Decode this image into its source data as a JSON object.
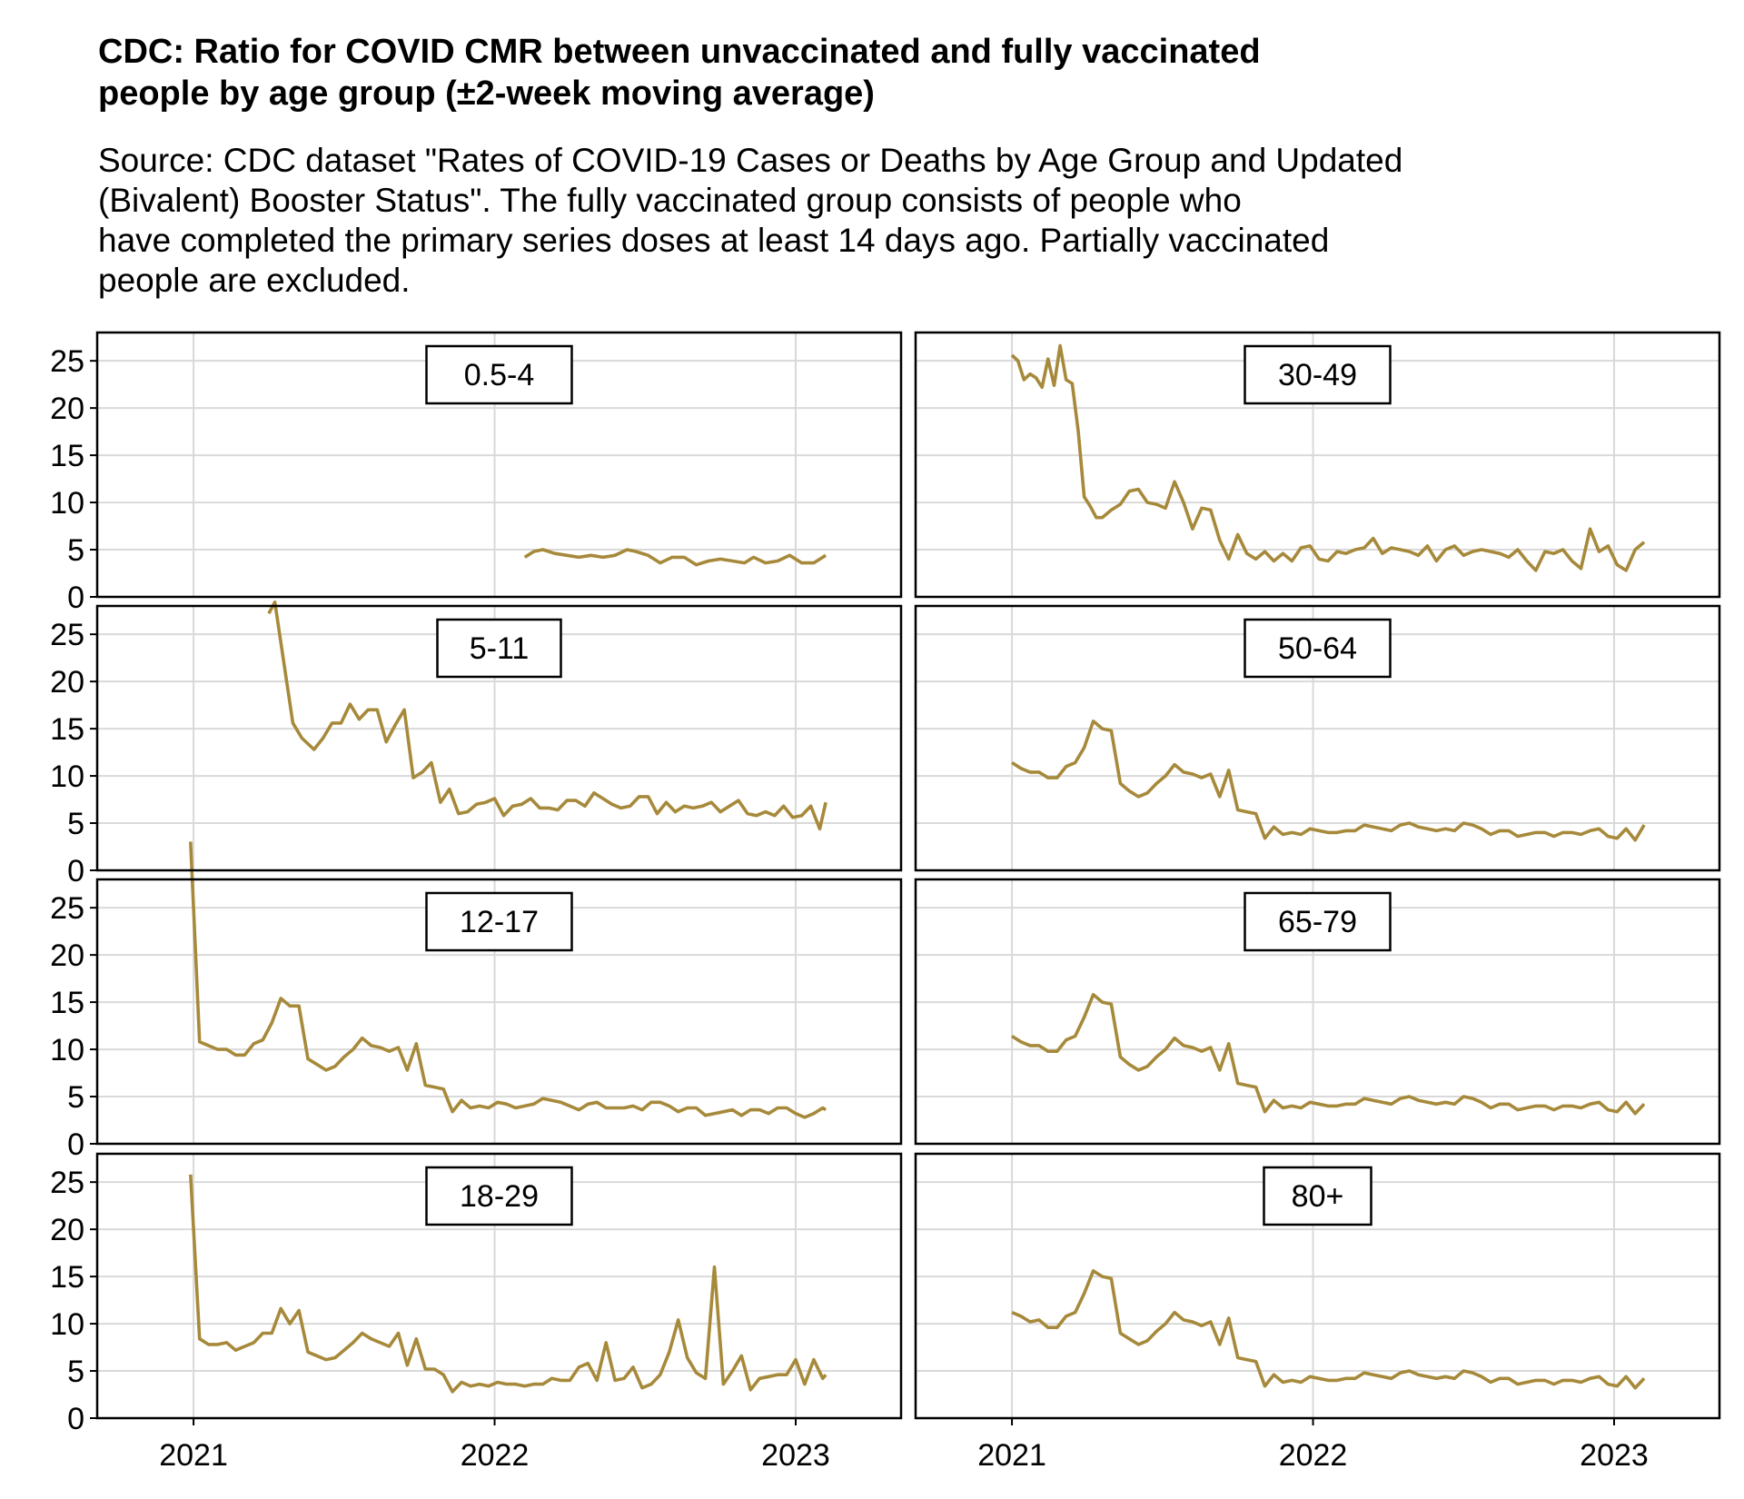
{
  "title_lines": [
    "CDC: Ratio for COVID CMR between unvaccinated and fully vaccinated",
    "people by age group (±2-week moving average)"
  ],
  "subtitle_lines": [
    "Source: CDC dataset \"Rates of COVID-19 Cases or Deaths by Age Group and Updated",
    "(Bivalent) Booster Status\". The fully vaccinated group consists of people who",
    "have completed the primary series doses at least 14 days ago. Partially vaccinated",
    "people are excluded."
  ],
  "chart_data": {
    "type": "line",
    "facet_layout": "4 rows x 2 columns",
    "line_color": "#a6893a",
    "grid": true,
    "x_ticks": [
      "2021",
      "2022",
      "2023"
    ],
    "y_ticks": [
      "0",
      "5",
      "10",
      "15",
      "20",
      "25"
    ],
    "ylim": [
      0,
      28
    ],
    "x_range_years": [
      2020.68,
      2023.35
    ],
    "panels": [
      {
        "label": "0.5-4",
        "x": [
          2022.1,
          2022.13,
          2022.16,
          2022.2,
          2022.24,
          2022.28,
          2022.32,
          2022.36,
          2022.4,
          2022.44,
          2022.47,
          2022.51,
          2022.55,
          2022.59,
          2022.63,
          2022.67,
          2022.71,
          2022.75,
          2022.79,
          2022.83,
          2022.86,
          2022.9,
          2022.94,
          2022.98,
          2023.02,
          2023.06,
          2023.1
        ],
        "y": [
          4.2,
          4.8,
          5.0,
          4.6,
          4.4,
          4.2,
          4.4,
          4.2,
          4.4,
          5.0,
          4.8,
          4.4,
          3.6,
          4.2,
          4.2,
          3.4,
          3.8,
          4.0,
          3.8,
          3.6,
          4.2,
          3.6,
          3.8,
          4.4,
          3.6,
          3.6,
          4.4
        ]
      },
      {
        "label": "30-49",
        "x": [
          2021.0,
          2021.02,
          2021.04,
          2021.06,
          2021.08,
          2021.1,
          2021.12,
          2021.14,
          2021.16,
          2021.18,
          2021.2,
          2021.22,
          2021.24,
          2021.26,
          2021.28,
          2021.3,
          2021.33,
          2021.36,
          2021.39,
          2021.42,
          2021.45,
          2021.48,
          2021.51,
          2021.54,
          2021.57,
          2021.6,
          2021.63,
          2021.66,
          2021.69,
          2021.72,
          2021.75,
          2021.78,
          2021.81,
          2021.84,
          2021.87,
          2021.9,
          2021.93,
          2021.96,
          2021.99,
          2022.02,
          2022.05,
          2022.08,
          2022.11,
          2022.14,
          2022.17,
          2022.2,
          2022.23,
          2022.26,
          2022.29,
          2022.32,
          2022.35,
          2022.38,
          2022.41,
          2022.44,
          2022.47,
          2022.5,
          2022.53,
          2022.56,
          2022.59,
          2022.62,
          2022.65,
          2022.68,
          2022.71,
          2022.74,
          2022.77,
          2022.8,
          2022.83,
          2022.86,
          2022.89,
          2022.92,
          2022.95,
          2022.98,
          2023.01,
          2023.04,
          2023.07,
          2023.1
        ],
        "y": [
          25.6,
          25.0,
          23.0,
          23.6,
          23.2,
          22.2,
          25.2,
          22.4,
          26.6,
          23.0,
          22.6,
          17.6,
          10.6,
          9.6,
          8.4,
          8.4,
          9.2,
          9.8,
          11.2,
          11.4,
          10.0,
          9.8,
          9.4,
          12.2,
          10.0,
          7.2,
          9.4,
          9.2,
          6.0,
          4.0,
          6.6,
          4.6,
          4.0,
          4.8,
          3.8,
          4.6,
          3.8,
          5.2,
          5.4,
          4.0,
          3.8,
          4.8,
          4.6,
          5.0,
          5.2,
          6.2,
          4.6,
          5.2,
          5.0,
          4.8,
          4.4,
          5.4,
          3.8,
          5.0,
          5.4,
          4.4,
          4.8,
          5.0,
          4.8,
          4.6,
          4.2,
          5.0,
          3.8,
          2.8,
          4.8,
          4.6,
          5.0,
          3.8,
          3.0,
          7.2,
          4.8,
          5.4,
          3.4,
          2.8,
          5.0,
          5.8
        ]
      },
      {
        "label": "5-11",
        "x": [
          2021.25,
          2021.27,
          2021.3,
          2021.33,
          2021.36,
          2021.4,
          2021.43,
          2021.46,
          2021.49,
          2021.52,
          2021.55,
          2021.58,
          2021.61,
          2021.64,
          2021.67,
          2021.7,
          2021.73,
          2021.76,
          2021.79,
          2021.82,
          2021.85,
          2021.88,
          2021.91,
          2021.94,
          2021.97,
          2022.0,
          2022.03,
          2022.06,
          2022.09,
          2022.12,
          2022.15,
          2022.18,
          2022.21,
          2022.24,
          2022.27,
          2022.3,
          2022.33,
          2022.36,
          2022.39,
          2022.42,
          2022.45,
          2022.48,
          2022.51,
          2022.54,
          2022.57,
          2022.6,
          2022.63,
          2022.66,
          2022.69,
          2022.72,
          2022.75,
          2022.78,
          2022.81,
          2022.84,
          2022.87,
          2022.9,
          2022.93,
          2022.96,
          2022.99,
          2023.02,
          2023.05,
          2023.08,
          2023.1
        ],
        "y": [
          27.2,
          28.4,
          22.0,
          15.6,
          14.0,
          12.8,
          14.0,
          15.6,
          15.6,
          17.6,
          16.0,
          17.0,
          17.0,
          13.6,
          15.4,
          17.0,
          9.8,
          10.4,
          11.4,
          7.2,
          8.6,
          6.0,
          6.2,
          7.0,
          7.2,
          7.6,
          5.8,
          6.8,
          7.0,
          7.6,
          6.6,
          6.6,
          6.4,
          7.4,
          7.4,
          6.8,
          8.2,
          7.6,
          7.0,
          6.6,
          6.8,
          7.8,
          7.8,
          6.0,
          7.2,
          6.2,
          6.8,
          6.6,
          6.8,
          7.2,
          6.2,
          6.8,
          7.4,
          6.0,
          5.8,
          6.2,
          5.8,
          6.8,
          5.6,
          5.8,
          6.8,
          4.4,
          7.2
        ]
      },
      {
        "label": "50-64",
        "x": [
          2021.0,
          2021.03,
          2021.06,
          2021.09,
          2021.12,
          2021.15,
          2021.18,
          2021.21,
          2021.24,
          2021.27,
          2021.3,
          2021.33,
          2021.36,
          2021.39,
          2021.42,
          2021.45,
          2021.48,
          2021.51,
          2021.54,
          2021.57,
          2021.6,
          2021.63,
          2021.66,
          2021.69,
          2021.72,
          2021.75,
          2021.78,
          2021.81,
          2021.84,
          2021.87,
          2021.9,
          2021.93,
          2021.96,
          2021.99,
          2022.02,
          2022.05,
          2022.08,
          2022.11,
          2022.14,
          2022.17,
          2022.2,
          2022.23,
          2022.26,
          2022.29,
          2022.32,
          2022.35,
          2022.38,
          2022.41,
          2022.44,
          2022.47,
          2022.5,
          2022.53,
          2022.56,
          2022.59,
          2022.62,
          2022.65,
          2022.68,
          2022.71,
          2022.74,
          2022.77,
          2022.8,
          2022.83,
          2022.86,
          2022.89,
          2022.92,
          2022.95,
          2022.98,
          2023.01,
          2023.04,
          2023.07,
          2023.1
        ],
        "y": [
          11.4,
          10.8,
          10.4,
          10.4,
          9.8,
          9.8,
          11.0,
          11.4,
          13.0,
          15.8,
          15.0,
          14.8,
          9.2,
          8.4,
          7.8,
          8.2,
          9.2,
          10.0,
          11.2,
          10.4,
          10.2,
          9.8,
          10.2,
          7.8,
          10.6,
          6.4,
          6.2,
          6.0,
          3.4,
          4.6,
          3.8,
          4.0,
          3.8,
          4.4,
          4.2,
          4.0,
          4.0,
          4.2,
          4.2,
          4.8,
          4.6,
          4.4,
          4.2,
          4.8,
          5.0,
          4.6,
          4.4,
          4.2,
          4.4,
          4.2,
          5.0,
          4.8,
          4.4,
          3.8,
          4.2,
          4.2,
          3.6,
          3.8,
          4.0,
          4.0,
          3.6,
          4.0,
          4.0,
          3.8,
          4.2,
          4.4,
          3.6,
          3.4,
          4.4,
          3.2,
          4.8
        ]
      },
      {
        "label": "12-17",
        "x": [
          2020.99,
          2021.02,
          2021.05,
          2021.08,
          2021.11,
          2021.14,
          2021.17,
          2021.2,
          2021.23,
          2021.26,
          2021.29,
          2021.32,
          2021.35,
          2021.38,
          2021.41,
          2021.44,
          2021.47,
          2021.5,
          2021.53,
          2021.56,
          2021.59,
          2021.62,
          2021.65,
          2021.68,
          2021.71,
          2021.74,
          2021.77,
          2021.8,
          2021.83,
          2021.86,
          2021.89,
          2021.92,
          2021.95,
          2021.98,
          2022.01,
          2022.04,
          2022.07,
          2022.1,
          2022.13,
          2022.16,
          2022.19,
          2022.22,
          2022.25,
          2022.28,
          2022.31,
          2022.34,
          2022.37,
          2022.4,
          2022.43,
          2022.46,
          2022.49,
          2022.52,
          2022.55,
          2022.58,
          2022.61,
          2022.64,
          2022.67,
          2022.7,
          2022.73,
          2022.76,
          2022.79,
          2022.82,
          2022.85,
          2022.88,
          2022.91,
          2022.94,
          2022.97,
          2023.0,
          2023.03,
          2023.06,
          2023.09,
          2023.1
        ],
        "y": [
          32.0,
          10.8,
          10.4,
          10.0,
          10.0,
          9.4,
          9.4,
          10.6,
          11.0,
          12.8,
          15.4,
          14.6,
          14.6,
          9.0,
          8.4,
          7.8,
          8.2,
          9.2,
          10.0,
          11.2,
          10.4,
          10.2,
          9.8,
          10.2,
          7.8,
          10.6,
          6.2,
          6.0,
          5.8,
          3.4,
          4.6,
          3.8,
          4.0,
          3.8,
          4.4,
          4.2,
          3.8,
          4.0,
          4.2,
          4.8,
          4.6,
          4.4,
          4.0,
          3.6,
          4.2,
          4.4,
          3.8,
          3.8,
          3.8,
          4.0,
          3.6,
          4.4,
          4.4,
          4.0,
          3.4,
          3.8,
          3.8,
          3.0,
          3.2,
          3.4,
          3.6,
          3.0,
          3.6,
          3.6,
          3.2,
          3.8,
          3.8,
          3.2,
          2.8,
          3.2,
          3.8,
          3.6
        ]
      },
      {
        "label": "65-79",
        "x": [
          2021.0,
          2021.03,
          2021.06,
          2021.09,
          2021.12,
          2021.15,
          2021.18,
          2021.21,
          2021.24,
          2021.27,
          2021.3,
          2021.33,
          2021.36,
          2021.39,
          2021.42,
          2021.45,
          2021.48,
          2021.51,
          2021.54,
          2021.57,
          2021.6,
          2021.63,
          2021.66,
          2021.69,
          2021.72,
          2021.75,
          2021.78,
          2021.81,
          2021.84,
          2021.87,
          2021.9,
          2021.93,
          2021.96,
          2021.99,
          2022.02,
          2022.05,
          2022.08,
          2022.11,
          2022.14,
          2022.17,
          2022.2,
          2022.23,
          2022.26,
          2022.29,
          2022.32,
          2022.35,
          2022.38,
          2022.41,
          2022.44,
          2022.47,
          2022.5,
          2022.53,
          2022.56,
          2022.59,
          2022.62,
          2022.65,
          2022.68,
          2022.71,
          2022.74,
          2022.77,
          2022.8,
          2022.83,
          2022.86,
          2022.89,
          2022.92,
          2022.95,
          2022.98,
          2023.01,
          2023.04,
          2023.07,
          2023.1
        ],
        "y": [
          11.4,
          10.8,
          10.4,
          10.4,
          9.8,
          9.8,
          11.0,
          11.4,
          13.4,
          15.8,
          15.0,
          14.8,
          9.2,
          8.4,
          7.8,
          8.2,
          9.2,
          10.0,
          11.2,
          10.4,
          10.2,
          9.8,
          10.2,
          7.8,
          10.6,
          6.4,
          6.2,
          6.0,
          3.4,
          4.6,
          3.8,
          4.0,
          3.8,
          4.4,
          4.2,
          4.0,
          4.0,
          4.2,
          4.2,
          4.8,
          4.6,
          4.4,
          4.2,
          4.8,
          5.0,
          4.6,
          4.4,
          4.2,
          4.4,
          4.2,
          5.0,
          4.8,
          4.4,
          3.8,
          4.2,
          4.2,
          3.6,
          3.8,
          4.0,
          4.0,
          3.6,
          4.0,
          4.0,
          3.8,
          4.2,
          4.4,
          3.6,
          3.4,
          4.4,
          3.2,
          4.2
        ]
      },
      {
        "label": "18-29",
        "x": [
          2020.99,
          2021.02,
          2021.05,
          2021.08,
          2021.11,
          2021.14,
          2021.17,
          2021.2,
          2021.23,
          2021.26,
          2021.29,
          2021.32,
          2021.35,
          2021.38,
          2021.41,
          2021.44,
          2021.47,
          2021.5,
          2021.53,
          2021.56,
          2021.59,
          2021.62,
          2021.65,
          2021.68,
          2021.71,
          2021.74,
          2021.77,
          2021.8,
          2021.83,
          2021.86,
          2021.89,
          2021.92,
          2021.95,
          2021.98,
          2022.01,
          2022.04,
          2022.07,
          2022.1,
          2022.13,
          2022.16,
          2022.19,
          2022.22,
          2022.25,
          2022.28,
          2022.31,
          2022.34,
          2022.37,
          2022.4,
          2022.43,
          2022.46,
          2022.49,
          2022.52,
          2022.55,
          2022.58,
          2022.61,
          2022.64,
          2022.67,
          2022.7,
          2022.73,
          2022.76,
          2022.79,
          2022.82,
          2022.85,
          2022.88,
          2022.91,
          2022.94,
          2022.97,
          2023.0,
          2023.03,
          2023.06,
          2023.09,
          2023.1
        ],
        "y": [
          25.8,
          8.4,
          7.8,
          7.8,
          8.0,
          7.2,
          7.6,
          8.0,
          9.0,
          9.0,
          11.6,
          10.0,
          11.4,
          7.0,
          6.6,
          6.2,
          6.4,
          7.2,
          8.0,
          9.0,
          8.4,
          8.0,
          7.6,
          9.0,
          5.6,
          8.4,
          5.2,
          5.2,
          4.6,
          2.8,
          3.8,
          3.4,
          3.6,
          3.4,
          3.8,
          3.6,
          3.6,
          3.4,
          3.6,
          3.6,
          4.2,
          4.0,
          4.0,
          5.4,
          5.8,
          4.0,
          8.0,
          4.0,
          4.2,
          5.4,
          3.2,
          3.6,
          4.6,
          7.0,
          10.4,
          6.4,
          4.8,
          4.2,
          16.0,
          3.6,
          5.0,
          6.6,
          3.0,
          4.2,
          4.4,
          4.6,
          4.6,
          6.2,
          3.6,
          6.2,
          4.2,
          4.6
        ]
      },
      {
        "label": "80+",
        "x": [
          2021.0,
          2021.03,
          2021.06,
          2021.09,
          2021.12,
          2021.15,
          2021.18,
          2021.21,
          2021.24,
          2021.27,
          2021.3,
          2021.33,
          2021.36,
          2021.39,
          2021.42,
          2021.45,
          2021.48,
          2021.51,
          2021.54,
          2021.57,
          2021.6,
          2021.63,
          2021.66,
          2021.69,
          2021.72,
          2021.75,
          2021.78,
          2021.81,
          2021.84,
          2021.87,
          2021.9,
          2021.93,
          2021.96,
          2021.99,
          2022.02,
          2022.05,
          2022.08,
          2022.11,
          2022.14,
          2022.17,
          2022.2,
          2022.23,
          2022.26,
          2022.29,
          2022.32,
          2022.35,
          2022.38,
          2022.41,
          2022.44,
          2022.47,
          2022.5,
          2022.53,
          2022.56,
          2022.59,
          2022.62,
          2022.65,
          2022.68,
          2022.71,
          2022.74,
          2022.77,
          2022.8,
          2022.83,
          2022.86,
          2022.89,
          2022.92,
          2022.95,
          2022.98,
          2023.01,
          2023.04,
          2023.07,
          2023.1
        ],
        "y": [
          11.2,
          10.8,
          10.2,
          10.4,
          9.6,
          9.6,
          10.8,
          11.2,
          13.2,
          15.6,
          15.0,
          14.8,
          9.0,
          8.4,
          7.8,
          8.2,
          9.2,
          10.0,
          11.2,
          10.4,
          10.2,
          9.8,
          10.2,
          7.8,
          10.6,
          6.4,
          6.2,
          6.0,
          3.4,
          4.6,
          3.8,
          4.0,
          3.8,
          4.4,
          4.2,
          4.0,
          4.0,
          4.2,
          4.2,
          4.8,
          4.6,
          4.4,
          4.2,
          4.8,
          5.0,
          4.6,
          4.4,
          4.2,
          4.4,
          4.2,
          5.0,
          4.8,
          4.4,
          3.8,
          4.2,
          4.2,
          3.6,
          3.8,
          4.0,
          4.0,
          3.6,
          4.0,
          4.0,
          3.8,
          4.2,
          4.4,
          3.6,
          3.4,
          4.4,
          3.2,
          4.2
        ]
      }
    ]
  }
}
